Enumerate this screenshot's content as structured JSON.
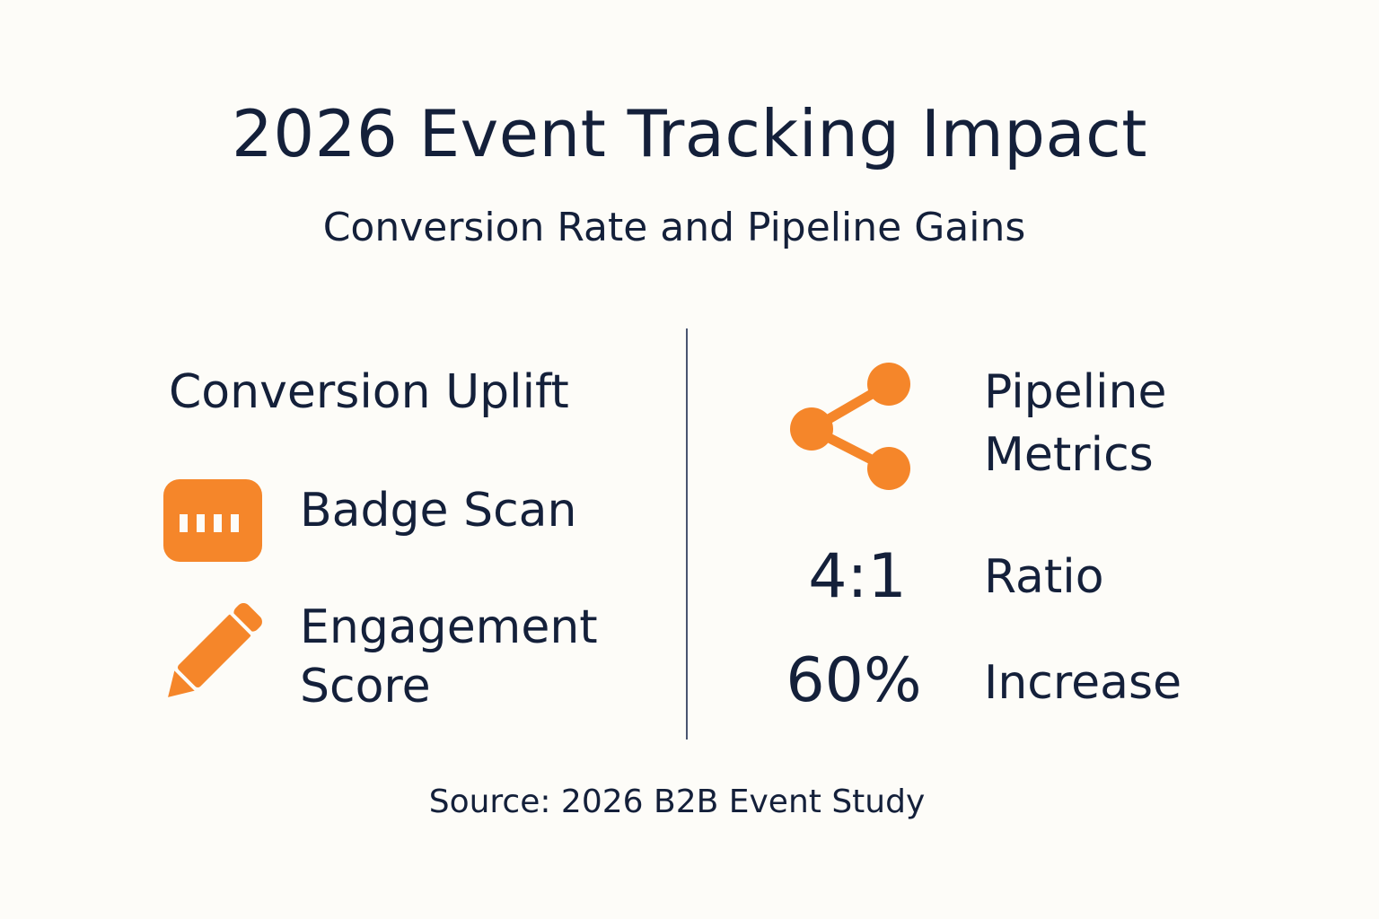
{
  "title": "2026 Event Tracking Impact",
  "subtitle": "Conversion Rate and Pipeline Gains",
  "left_panel": {
    "heading": "Conversion Uplift",
    "items": [
      {
        "label": "Badge Scan",
        "icon": "badge-scan-icon"
      },
      {
        "label_line1": "Engagement",
        "label_line2": "Score",
        "icon": "pencil-icon"
      }
    ]
  },
  "right_panel": {
    "heading_line1": "Pipeline",
    "heading_line2": "Metrics",
    "icon": "share-icon",
    "stats": [
      {
        "value": "4:1",
        "label": "Ratio"
      },
      {
        "value": "60%",
        "label": "Increase"
      }
    ]
  },
  "source": "Source: 2026 B2B Event Study",
  "colors": {
    "accent": "#f5862a",
    "text": "#14203a",
    "background": "#fdfcf8",
    "divider": "#4a5570"
  }
}
